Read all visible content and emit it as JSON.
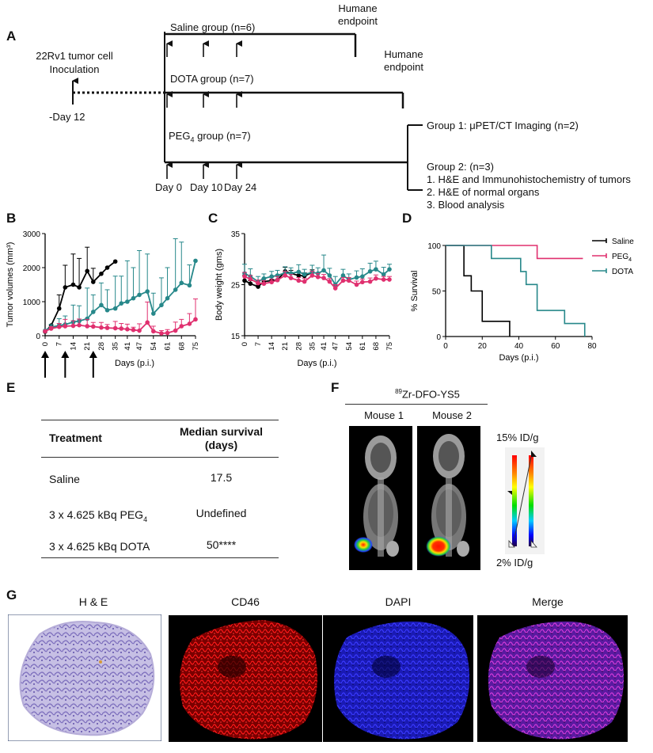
{
  "panelA": {
    "letter": "A",
    "inoculation_line1": "22Rv1 tumor cell",
    "inoculation_line2": "Inoculation",
    "day_neg12": "-Day 12",
    "saline_group": "Saline group (n=6)",
    "dota_group": "DOTA group (n=7)",
    "peg_group_prefix": "PEG",
    "peg_group_sub": "4",
    "peg_group_suffix": " group (n=7)",
    "humane1_line1": "Humane",
    "humane1_line2": "endpoint",
    "humane2_line1": "Humane",
    "humane2_line2": "endpoint",
    "day0": "Day 0",
    "day10": "Day 10",
    "day24": "Day 24",
    "group1": "Group 1: μPET/CT Imaging (n=2)",
    "group2_title": "Group 2: (n=3)",
    "group2_item1": "1. H&E and Immunohistochemistry of tumors",
    "group2_item2": "2. H&E of normal organs",
    "group2_item3": "3. Blood analysis"
  },
  "panelB": {
    "letter": "B"
  },
  "panelC": {
    "letter": "C"
  },
  "panelD": {
    "letter": "D"
  },
  "panelE": {
    "letter": "E",
    "col1": "Treatment",
    "col2_line1": "Median survival",
    "col2_line2": "(days)",
    "rows": [
      {
        "treatment": "Saline",
        "median": "17.5"
      },
      {
        "treatment_prefix": "3 x 4.625 kBq PEG",
        "treatment_sub": "4",
        "median": "Undefined"
      },
      {
        "treatment": "3 x 4.625 kBq DOTA",
        "median": "50****"
      }
    ]
  },
  "panelF": {
    "letter": "F",
    "title_sup": "89",
    "title_main": "Zr-DFO-YS5",
    "mouse1": "Mouse 1",
    "mouse2": "Mouse 2",
    "scale_max": "15% ID/g",
    "scale_min": "2% ID/g"
  },
  "panelG": {
    "letter": "G",
    "titles": [
      "H & E",
      "CD46",
      "DAPI",
      "Merge"
    ]
  },
  "colors": {
    "saline": "#000000",
    "peg4": "#e0306f",
    "dota": "#27888a"
  },
  "chart_data": [
    {
      "id": "B",
      "type": "line",
      "title": "",
      "xlabel": "Days (p.i.)",
      "ylabel": "Tumor volumes (mm³)",
      "ylim": [
        0,
        3000
      ],
      "yticks": [
        0,
        1000,
        2000,
        3000
      ],
      "xticks": [
        "0",
        "7",
        "14",
        "21",
        "28",
        "35",
        "41",
        "47",
        "54",
        "61",
        "68",
        "75"
      ],
      "xticks_min": 0,
      "xticks_max": 75,
      "treatment_days": [
        0,
        10,
        24
      ],
      "series": [
        {
          "name": "Saline",
          "color": "#000000",
          "x": [
            0,
            3,
            7,
            10,
            14,
            17,
            21,
            24,
            28,
            31,
            35
          ],
          "y": [
            120,
            300,
            800,
            1420,
            1500,
            1420,
            1900,
            1580,
            1820,
            2000,
            2180
          ],
          "err": [
            0,
            0,
            400,
            650,
            900,
            850,
            700,
            400,
            0,
            0,
            0
          ]
        },
        {
          "name": "DOTA",
          "color": "#27888a",
          "x": [
            0,
            3,
            7,
            10,
            14,
            17,
            21,
            24,
            28,
            31,
            35,
            38,
            41,
            44,
            47,
            51,
            54,
            58,
            61,
            65,
            68,
            72,
            75
          ],
          "y": [
            150,
            250,
            300,
            330,
            400,
            430,
            500,
            700,
            900,
            750,
            800,
            950,
            1000,
            1100,
            1200,
            1300,
            650,
            900,
            1100,
            1350,
            1550,
            1480,
            2200
          ],
          "err": [
            0,
            80,
            200,
            250,
            500,
            450,
            900,
            500,
            650,
            600,
            950,
            800,
            1200,
            900,
            1300,
            1100,
            600,
            800,
            900,
            1500,
            1200,
            600,
            0
          ]
        },
        {
          "name": "PEG4",
          "color": "#e0306f",
          "x": [
            0,
            3,
            7,
            10,
            14,
            17,
            21,
            24,
            28,
            31,
            35,
            38,
            41,
            44,
            47,
            51,
            54,
            58,
            61,
            65,
            68,
            72,
            75
          ],
          "y": [
            130,
            210,
            260,
            280,
            290,
            310,
            280,
            270,
            240,
            230,
            220,
            210,
            190,
            170,
            150,
            390,
            130,
            70,
            80,
            150,
            280,
            350,
            480
          ],
          "err": [
            0,
            60,
            100,
            200,
            150,
            180,
            200,
            120,
            150,
            100,
            200,
            150,
            150,
            80,
            200,
            600,
            150,
            80,
            100,
            250,
            200,
            300,
            600
          ]
        }
      ]
    },
    {
      "id": "C",
      "type": "line",
      "title": "",
      "xlabel": "Days (p.i.)",
      "ylabel": "Body weight (gms)",
      "ylim": [
        15,
        35
      ],
      "yticks": [
        15,
        25,
        35
      ],
      "xticks": [
        "0",
        "7",
        "14",
        "21",
        "28",
        "35",
        "41",
        "47",
        "54",
        "61",
        "68",
        "75"
      ],
      "xticks_min": 0,
      "xticks_max": 75,
      "series": [
        {
          "name": "Saline",
          "color": "#000000",
          "x": [
            0,
            3,
            7,
            10,
            14,
            17,
            21,
            24,
            28,
            31,
            35
          ],
          "y": [
            25.8,
            25.2,
            24.6,
            25.6,
            25.8,
            25.9,
            27.6,
            27.2,
            26.8,
            26.7,
            27.4
          ],
          "err": [
            1.0,
            0.6,
            0.5,
            0.6,
            0.7,
            0.8,
            0.8,
            0.6,
            0.7,
            0.6,
            0.5
          ]
        },
        {
          "name": "DOTA",
          "color": "#27888a",
          "x": [
            0,
            3,
            7,
            10,
            14,
            17,
            21,
            24,
            28,
            31,
            35,
            38,
            41,
            44,
            47,
            51,
            54,
            58,
            61,
            65,
            68,
            72,
            75
          ],
          "y": [
            27.2,
            26.6,
            25.6,
            26.2,
            26.6,
            26.8,
            27.3,
            27.2,
            27.5,
            27.0,
            27.4,
            27.2,
            27.8,
            26.8,
            25.0,
            26.8,
            26.0,
            26.4,
            26.6,
            27.6,
            28.0,
            27.0,
            28.0
          ],
          "err": [
            1.8,
            1.5,
            1.0,
            0.9,
            1.0,
            1.0,
            1.2,
            1.1,
            1.4,
            1.0,
            1.4,
            1.1,
            3.0,
            1.4,
            1.6,
            1.2,
            1.1,
            1.3,
            1.5,
            1.6,
            1.6,
            1.4,
            1.0
          ]
        },
        {
          "name": "PEG4",
          "color": "#e0306f",
          "x": [
            0,
            3,
            7,
            10,
            14,
            17,
            21,
            24,
            28,
            31,
            35,
            38,
            41,
            44,
            47,
            51,
            54,
            58,
            61,
            65,
            68,
            72,
            75
          ],
          "y": [
            26.6,
            26.1,
            25.3,
            25.2,
            25.5,
            25.9,
            26.8,
            26.3,
            25.8,
            25.6,
            26.8,
            26.5,
            26.3,
            25.6,
            24.3,
            25.8,
            25.8,
            25.0,
            25.5,
            25.6,
            26.2,
            26.0,
            26.0
          ],
          "err": [
            0.8,
            0.7,
            0.6,
            0.6,
            0.6,
            0.7,
            0.8,
            0.7,
            0.6,
            0.6,
            0.8,
            0.7,
            0.7,
            0.6,
            0.7,
            0.6,
            0.6,
            0.7,
            0.6,
            0.7,
            0.7,
            0.6,
            0.6
          ]
        }
      ]
    },
    {
      "id": "D",
      "type": "line",
      "title": "",
      "xlabel": "Days (p.i.)",
      "ylabel": "% Survival",
      "xlim": [
        0,
        80
      ],
      "ylim": [
        0,
        100
      ],
      "xticks": [
        0,
        20,
        40,
        60,
        80
      ],
      "yticks": [
        0,
        50,
        100
      ],
      "legend": [
        "Saline",
        "PEG4",
        "DOTA"
      ],
      "legend_sub": "4",
      "series": [
        {
          "name": "Saline",
          "color": "#000000",
          "steps": [
            [
              0,
              100
            ],
            [
              10,
              100
            ],
            [
              10,
              66.7
            ],
            [
              14,
              66.7
            ],
            [
              14,
              50
            ],
            [
              20,
              50
            ],
            [
              20,
              16.7
            ],
            [
              35,
              16.7
            ],
            [
              35,
              0
            ]
          ]
        },
        {
          "name": "PEG4",
          "color": "#e0306f",
          "steps": [
            [
              0,
              100
            ],
            [
              50,
              100
            ],
            [
              50,
              85.7
            ],
            [
              75,
              85.7
            ]
          ]
        },
        {
          "name": "DOTA",
          "color": "#27888a",
          "steps": [
            [
              0,
              100
            ],
            [
              25,
              100
            ],
            [
              25,
              85.7
            ],
            [
              41,
              85.7
            ],
            [
              41,
              71.4
            ],
            [
              44,
              71.4
            ],
            [
              44,
              57.1
            ],
            [
              50,
              57.1
            ],
            [
              50,
              28.6
            ],
            [
              65,
              28.6
            ],
            [
              65,
              14.3
            ],
            [
              76,
              14.3
            ],
            [
              76,
              0
            ]
          ]
        }
      ]
    }
  ]
}
